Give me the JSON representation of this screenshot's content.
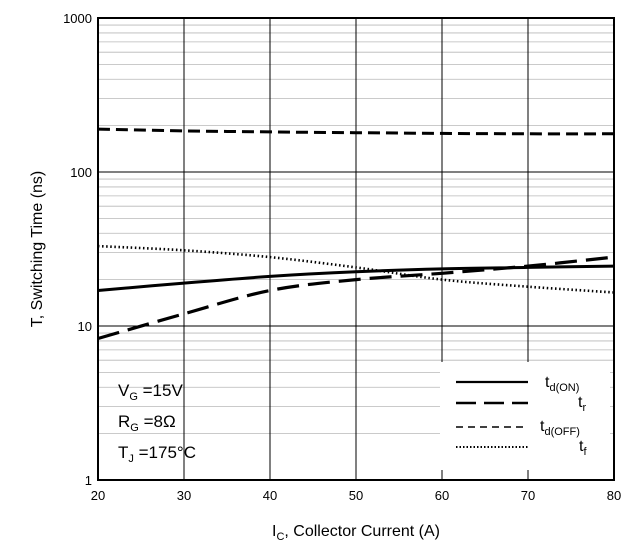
{
  "chart_data": {
    "type": "line",
    "title": "",
    "xlabel": {
      "main": "I",
      "sub": "C",
      "rest": ", Collector Current (A)"
    },
    "ylabel": "T, Switching Time (ns)",
    "xlim": [
      20,
      80
    ],
    "ylim": [
      1,
      1000
    ],
    "y_scale": "log",
    "grid": true,
    "x_ticks": [
      "20",
      "30",
      "40",
      "50",
      "60",
      "70",
      "80"
    ],
    "y_ticks": [
      "1",
      "10",
      "100",
      "1000"
    ],
    "legend_position": "bottom-right",
    "annotations": [
      {
        "main": "V",
        "sub": "G",
        "rest": " =15V"
      },
      {
        "main": "R",
        "sub": "G",
        "rest": " =8Ω"
      },
      {
        "main": "T",
        "sub": "J",
        "rest": " =175°C"
      }
    ],
    "series": [
      {
        "legend_main": "t",
        "legend_sub": "d(ON)",
        "style": "solid",
        "x": [
          20,
          30,
          40,
          50,
          60,
          70,
          80
        ],
        "y": [
          17,
          19,
          21,
          22.5,
          23.5,
          24,
          24.5
        ]
      },
      {
        "legend_main": "t",
        "legend_sub": "r",
        "style": "longdash",
        "x": [
          20,
          30,
          40,
          50,
          60,
          70,
          80
        ],
        "y": [
          8.3,
          12,
          17,
          20,
          22,
          24.5,
          28
        ]
      },
      {
        "legend_main": "t",
        "legend_sub": "d(OFF)",
        "style": "dash",
        "x": [
          20,
          30,
          40,
          50,
          60,
          70,
          80
        ],
        "y": [
          190,
          185,
          182,
          180,
          178,
          177,
          177
        ]
      },
      {
        "legend_main": "t",
        "legend_sub": "f",
        "style": "dot",
        "x": [
          20,
          30,
          40,
          50,
          60,
          70,
          80
        ],
        "y": [
          33,
          31,
          28,
          24,
          20,
          18,
          16.5
        ]
      }
    ]
  }
}
